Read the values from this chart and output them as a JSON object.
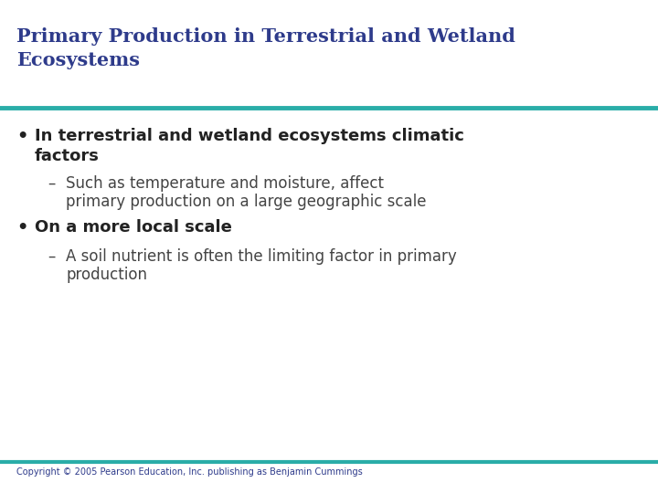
{
  "title_line1": "Primary Production in Terrestrial and Wetland",
  "title_line2": "Ecosystems",
  "title_color": "#2E3B8B",
  "title_fontsize": 15,
  "line_color": "#2AADA8",
  "background_color": "#FFFFFF",
  "bullet1_fontsize": 13,
  "bullet1_color": "#222222",
  "sub_bullet1_fontsize": 12,
  "sub_bullet1_color": "#444444",
  "bullet2_fontsize": 13,
  "bullet2_color": "#222222",
  "sub_bullet2_fontsize": 12,
  "sub_bullet2_color": "#444444",
  "footer": "Copyright © 2005 Pearson Education, Inc. publishing as Benjamin Cummings",
  "footer_fontsize": 7,
  "footer_color": "#2E3B8B"
}
